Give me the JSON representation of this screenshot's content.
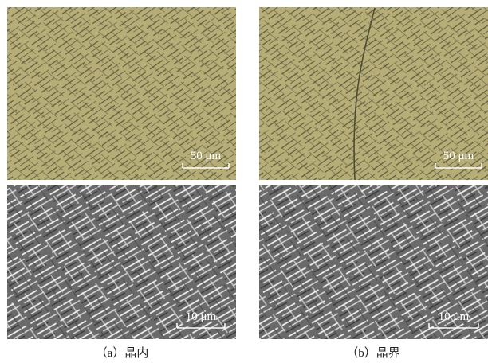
{
  "panels": [
    {
      "caption": "（a）晶内",
      "images": [
        {
          "scale_bar": "50 μm"
        },
        {
          "scale_bar": "10 μm"
        }
      ]
    },
    {
      "caption": "（b）晶界",
      "images": [
        {
          "scale_bar": "50 μm"
        },
        {
          "scale_bar": "10 μm"
        }
      ]
    }
  ]
}
